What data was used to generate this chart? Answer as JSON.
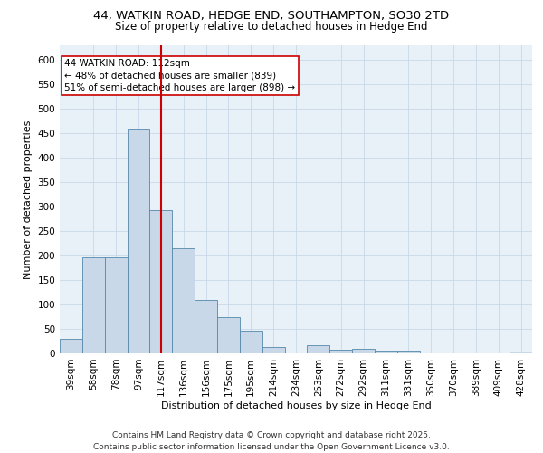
{
  "title_line1": "44, WATKIN ROAD, HEDGE END, SOUTHAMPTON, SO30 2TD",
  "title_line2": "Size of property relative to detached houses in Hedge End",
  "xlabel": "Distribution of detached houses by size in Hedge End",
  "ylabel": "Number of detached properties",
  "bar_values": [
    30,
    197,
    197,
    460,
    292,
    215,
    110,
    75,
    47,
    13,
    0,
    17,
    7,
    10,
    5,
    5,
    0,
    0,
    0,
    0,
    3
  ],
  "categories": [
    "39sqm",
    "58sqm",
    "78sqm",
    "97sqm",
    "117sqm",
    "136sqm",
    "156sqm",
    "175sqm",
    "195sqm",
    "214sqm",
    "234sqm",
    "253sqm",
    "272sqm",
    "292sqm",
    "311sqm",
    "331sqm",
    "350sqm",
    "370sqm",
    "389sqm",
    "409sqm",
    "428sqm"
  ],
  "bar_color": "#c8d8e8",
  "bar_edge_color": "#5588aa",
  "vline_x": 4,
  "vline_color": "#cc0000",
  "annotation_text": "44 WATKIN ROAD: 112sqm\n← 48% of detached houses are smaller (839)\n51% of semi-detached houses are larger (898) →",
  "annotation_box_color": "#ffffff",
  "annotation_box_edge": "#cc0000",
  "ylim": [
    0,
    630
  ],
  "yticks": [
    0,
    50,
    100,
    150,
    200,
    250,
    300,
    350,
    400,
    450,
    500,
    550,
    600
  ],
  "grid_color": "#c8d8e8",
  "bg_color": "#e8f0f8",
  "footnote": "Contains HM Land Registry data © Crown copyright and database right 2025.\nContains public sector information licensed under the Open Government Licence v3.0.",
  "title_fontsize": 9.5,
  "subtitle_fontsize": 8.5,
  "axis_label_fontsize": 8,
  "tick_fontsize": 7.5,
  "annot_fontsize": 7.5,
  "footnote_fontsize": 6.5
}
